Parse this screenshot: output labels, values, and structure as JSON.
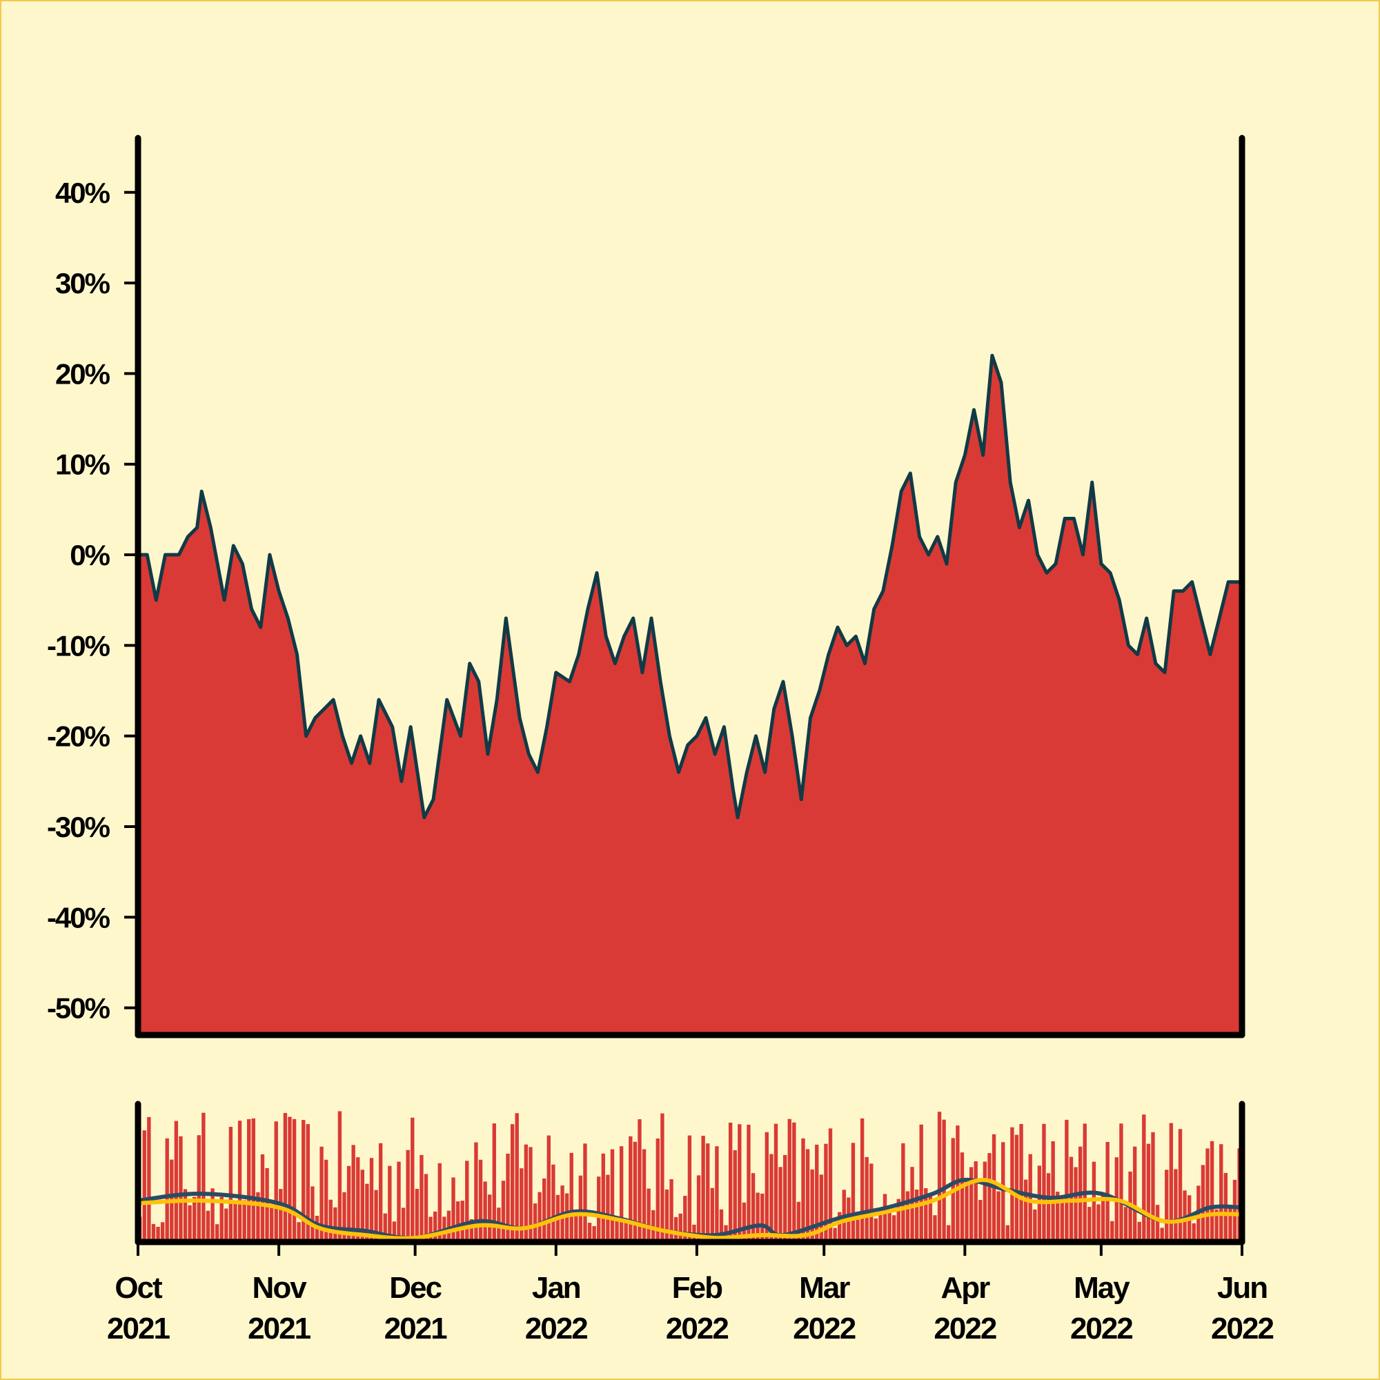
{
  "colors": {
    "background": "#FFF7CC",
    "border": "#F2C94C",
    "area_fill": "#DA3A35",
    "price_line": "#113A46",
    "axis": "#000000",
    "volume_bar": "#DA3A35",
    "ma_fast": "#2B4B63",
    "ma_slow": "#FFC20A"
  },
  "chart_data": [
    {
      "type": "area",
      "title": "",
      "xlabel": "",
      "ylabel": "",
      "x_range": [
        "2021-10-01",
        "2022-06-01"
      ],
      "ylim": [
        -53,
        46
      ],
      "y_ticks": [
        40,
        30,
        20,
        10,
        0,
        -10,
        -20,
        -30,
        -40,
        -50
      ],
      "y_tick_labels": [
        "40%",
        "30%",
        "20%",
        "10%",
        "0%",
        "-10%",
        "-20%",
        "-30%",
        "-40%",
        "-50%"
      ],
      "grid": false,
      "series": [
        {
          "values_unit": "percent",
          "points": [
            [
              "2021-10-01",
              0
            ],
            [
              "2021-10-03",
              0
            ],
            [
              "2021-10-05",
              -5
            ],
            [
              "2021-10-07",
              0
            ],
            [
              "2021-10-10",
              0
            ],
            [
              "2021-10-12",
              2
            ],
            [
              "2021-10-14",
              3
            ],
            [
              "2021-10-15",
              7
            ],
            [
              "2021-10-17",
              3
            ],
            [
              "2021-10-20",
              -5
            ],
            [
              "2021-10-22",
              1
            ],
            [
              "2021-10-24",
              -1
            ],
            [
              "2021-10-26",
              -6
            ],
            [
              "2021-10-28",
              -8
            ],
            [
              "2021-10-30",
              0
            ],
            [
              "2021-11-01",
              -4
            ],
            [
              "2021-11-03",
              -7
            ],
            [
              "2021-11-05",
              -11
            ],
            [
              "2021-11-07",
              -20
            ],
            [
              "2021-11-09",
              -18
            ],
            [
              "2021-11-11",
              -17
            ],
            [
              "2021-11-13",
              -16
            ],
            [
              "2021-11-15",
              -20
            ],
            [
              "2021-11-17",
              -23
            ],
            [
              "2021-11-19",
              -20
            ],
            [
              "2021-11-21",
              -23
            ],
            [
              "2021-11-23",
              -16
            ],
            [
              "2021-11-26",
              -19
            ],
            [
              "2021-11-28",
              -25
            ],
            [
              "2021-11-30",
              -19
            ],
            [
              "2021-12-03",
              -29
            ],
            [
              "2021-12-05",
              -27
            ],
            [
              "2021-12-08",
              -16
            ],
            [
              "2021-12-11",
              -20
            ],
            [
              "2021-12-13",
              -12
            ],
            [
              "2021-12-15",
              -14
            ],
            [
              "2021-12-17",
              -22
            ],
            [
              "2021-12-19",
              -16
            ],
            [
              "2021-12-21",
              -7
            ],
            [
              "2021-12-24",
              -18
            ],
            [
              "2021-12-26",
              -22
            ],
            [
              "2021-12-28",
              -24
            ],
            [
              "2021-12-30",
              -19
            ],
            [
              "2022-01-01",
              -13
            ],
            [
              "2022-01-04",
              -14
            ],
            [
              "2022-01-06",
              -11
            ],
            [
              "2022-01-08",
              -6
            ],
            [
              "2022-01-10",
              -2
            ],
            [
              "2022-01-12",
              -9
            ],
            [
              "2022-01-14",
              -12
            ],
            [
              "2022-01-16",
              -9
            ],
            [
              "2022-01-18",
              -7
            ],
            [
              "2022-01-20",
              -13
            ],
            [
              "2022-01-22",
              -7
            ],
            [
              "2022-01-24",
              -14
            ],
            [
              "2022-01-26",
              -20
            ],
            [
              "2022-01-28",
              -24
            ],
            [
              "2022-01-30",
              -21
            ],
            [
              "2022-02-01",
              -20
            ],
            [
              "2022-02-03",
              -18
            ],
            [
              "2022-02-05",
              -22
            ],
            [
              "2022-02-07",
              -19
            ],
            [
              "2022-02-09",
              -26
            ],
            [
              "2022-02-10",
              -29
            ],
            [
              "2022-02-12",
              -24
            ],
            [
              "2022-02-14",
              -20
            ],
            [
              "2022-02-16",
              -24
            ],
            [
              "2022-02-18",
              -17
            ],
            [
              "2022-02-20",
              -14
            ],
            [
              "2022-02-22",
              -20
            ],
            [
              "2022-02-24",
              -27
            ],
            [
              "2022-02-26",
              -18
            ],
            [
              "2022-02-28",
              -15
            ],
            [
              "2022-03-02",
              -11
            ],
            [
              "2022-03-04",
              -8
            ],
            [
              "2022-03-06",
              -10
            ],
            [
              "2022-03-08",
              -9
            ],
            [
              "2022-03-10",
              -12
            ],
            [
              "2022-03-12",
              -6
            ],
            [
              "2022-03-14",
              -4
            ],
            [
              "2022-03-16",
              1
            ],
            [
              "2022-03-18",
              7
            ],
            [
              "2022-03-20",
              9
            ],
            [
              "2022-03-22",
              2
            ],
            [
              "2022-03-24",
              0
            ],
            [
              "2022-03-26",
              2
            ],
            [
              "2022-03-28",
              -1
            ],
            [
              "2022-03-30",
              8
            ],
            [
              "2022-04-01",
              11
            ],
            [
              "2022-04-03",
              16
            ],
            [
              "2022-04-05",
              11
            ],
            [
              "2022-04-07",
              22
            ],
            [
              "2022-04-09",
              19
            ],
            [
              "2022-04-11",
              8
            ],
            [
              "2022-04-13",
              3
            ],
            [
              "2022-04-15",
              6
            ],
            [
              "2022-04-17",
              0
            ],
            [
              "2022-04-19",
              -2
            ],
            [
              "2022-04-21",
              -1
            ],
            [
              "2022-04-23",
              4
            ],
            [
              "2022-04-25",
              4
            ],
            [
              "2022-04-27",
              0
            ],
            [
              "2022-04-29",
              8
            ],
            [
              "2022-05-01",
              -1
            ],
            [
              "2022-05-03",
              -2
            ],
            [
              "2022-05-05",
              -5
            ],
            [
              "2022-05-07",
              -10
            ],
            [
              "2022-05-09",
              -11
            ],
            [
              "2022-05-11",
              -7
            ],
            [
              "2022-05-13",
              -12
            ],
            [
              "2022-05-15",
              -13
            ],
            [
              "2022-05-17",
              -4
            ],
            [
              "2022-05-19",
              -4
            ],
            [
              "2022-05-21",
              -3
            ],
            [
              "2022-05-23",
              -7
            ],
            [
              "2022-05-25",
              -11
            ],
            [
              "2022-05-27",
              -7
            ],
            [
              "2022-05-29",
              -3
            ],
            [
              "2022-06-01",
              -3
            ]
          ]
        }
      ]
    },
    {
      "type": "bar",
      "title": "",
      "xlabel": "",
      "ylabel": "",
      "x_ticks": [
        "2021-10-01",
        "2021-11-01",
        "2021-12-01",
        "2022-01-01",
        "2022-02-01",
        "2022-03-01",
        "2022-04-01",
        "2022-05-01",
        "2022-06-01"
      ],
      "x_tick_labels": [
        [
          "Oct",
          "2021"
        ],
        [
          "Nov",
          "2021"
        ],
        [
          "Dec",
          "2021"
        ],
        [
          "Jan",
          "2022"
        ],
        [
          "Feb",
          "2022"
        ],
        [
          "Mar",
          "2022"
        ],
        [
          "Apr",
          "2022"
        ],
        [
          "May",
          "2022"
        ],
        [
          "Jun",
          "2022"
        ]
      ],
      "ylim": [
        0,
        100
      ],
      "series": [
        {
          "name": "",
          "kind": "volume_bars",
          "bar_count": 243,
          "value_range": [
            10,
            95
          ]
        },
        {
          "name": "",
          "kind": "moving_average_fast",
          "points": [
            [
              "2021-10-01",
              30
            ],
            [
              "2021-10-15",
              35
            ],
            [
              "2021-11-01",
              28
            ],
            [
              "2021-11-10",
              12
            ],
            [
              "2021-11-20",
              8
            ],
            [
              "2021-12-01",
              3
            ],
            [
              "2021-12-15",
              15
            ],
            [
              "2021-12-25",
              10
            ],
            [
              "2022-01-05",
              22
            ],
            [
              "2022-01-15",
              17
            ],
            [
              "2022-01-25",
              8
            ],
            [
              "2022-02-05",
              5
            ],
            [
              "2022-02-15",
              12
            ],
            [
              "2022-02-20",
              5
            ],
            [
              "2022-03-05",
              18
            ],
            [
              "2022-03-15",
              25
            ],
            [
              "2022-03-25",
              35
            ],
            [
              "2022-04-01",
              45
            ],
            [
              "2022-04-10",
              38
            ],
            [
              "2022-04-20",
              32
            ],
            [
              "2022-05-01",
              35
            ],
            [
              "2022-05-15",
              15
            ],
            [
              "2022-05-25",
              25
            ],
            [
              "2022-06-01",
              25
            ]
          ]
        },
        {
          "name": "",
          "kind": "moving_average_slow",
          "points": [
            [
              "2021-10-01",
              28
            ],
            [
              "2021-10-15",
              30
            ],
            [
              "2021-11-01",
              25
            ],
            [
              "2021-11-10",
              10
            ],
            [
              "2021-11-20",
              5
            ],
            [
              "2021-12-01",
              3
            ],
            [
              "2021-12-15",
              12
            ],
            [
              "2021-12-25",
              10
            ],
            [
              "2022-01-05",
              20
            ],
            [
              "2022-01-15",
              16
            ],
            [
              "2022-01-25",
              8
            ],
            [
              "2022-02-05",
              3
            ],
            [
              "2022-02-15",
              5
            ],
            [
              "2022-02-25",
              5
            ],
            [
              "2022-03-05",
              15
            ],
            [
              "2022-03-15",
              22
            ],
            [
              "2022-03-25",
              30
            ],
            [
              "2022-04-05",
              45
            ],
            [
              "2022-04-15",
              30
            ],
            [
              "2022-04-25",
              30
            ],
            [
              "2022-05-05",
              30
            ],
            [
              "2022-05-15",
              15
            ],
            [
              "2022-05-25",
              20
            ],
            [
              "2022-06-01",
              20
            ]
          ]
        }
      ]
    }
  ]
}
